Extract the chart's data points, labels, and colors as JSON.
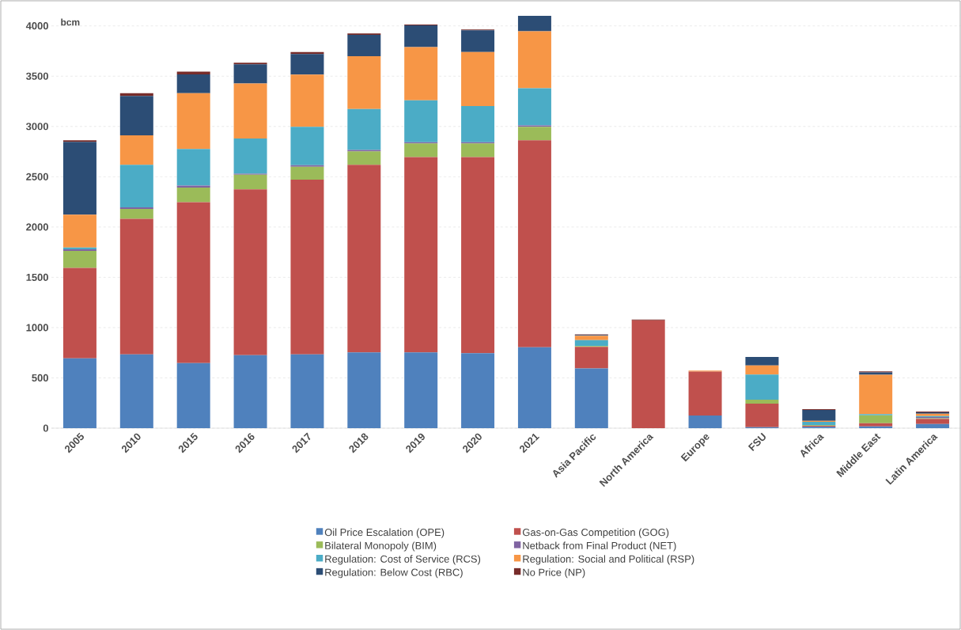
{
  "chart_data": {
    "type": "bar",
    "stacked": true,
    "ylabel": "bcm",
    "categories": [
      "2005",
      "2010",
      "2015",
      "2016",
      "2017",
      "2018",
      "2019",
      "2020",
      "2021",
      "Asia Pacific",
      "North America",
      "Europe",
      "FSU",
      "Africa",
      "Middle East",
      "Latin America"
    ],
    "series": [
      {
        "name": "Oil Price Escalation (OPE)",
        "color": "#4f81bd",
        "values": [
          694,
          734,
          648,
          726,
          734,
          753,
          753,
          745,
          805,
          594,
          0,
          126,
          10,
          13,
          18,
          42
        ]
      },
      {
        "name": "Gas-on-Gas Competition (GOG)",
        "color": "#c0504d",
        "values": [
          899,
          1347,
          1599,
          1648,
          1738,
          1865,
          1943,
          1951,
          2057,
          215,
          1073,
          437,
          233,
          11,
          32,
          50
        ]
      },
      {
        "name": "Bilateral Monopoly (BIM)",
        "color": "#9bbb59",
        "values": [
          169,
          98,
          146,
          146,
          127,
          135,
          136,
          136,
          135,
          8,
          0,
          0,
          40,
          5,
          78,
          7
        ]
      },
      {
        "name": "Netback from Final Product (NET)",
        "color": "#8064a2",
        "values": [
          16,
          16,
          19,
          11,
          16,
          14,
          11,
          11,
          14,
          null,
          0,
          0,
          0,
          0,
          0,
          11
        ]
      },
      {
        "name": "Regulation: Cost of Service (RCS)",
        "color": "#4bacc6",
        "values": [
          19,
          423,
          363,
          350,
          382,
          406,
          417,
          360,
          368,
          58,
          0,
          0,
          251,
          34,
          11,
          10
        ]
      },
      {
        "name": "Regulation: Social and Political (RSP)",
        "color": "#f79646",
        "values": [
          325,
          293,
          556,
          547,
          518,
          526,
          529,
          537,
          567,
          44,
          0,
          10,
          89,
          10,
          392,
          24
        ]
      },
      {
        "name": "Regulation: Below Cost (RBC)",
        "color": "#2c4d75",
        "values": [
          724,
          393,
          187,
          190,
          206,
          212,
          216,
          217,
          154,
          8,
          0,
          0,
          86,
          108,
          24,
          13
        ]
      },
      {
        "name": "No Price (NP)",
        "color": "#772c2a",
        "values": [
          16,
          27,
          27,
          16,
          19,
          13,
          9,
          8,
          0,
          6,
          8,
          0,
          0,
          7,
          10,
          8
        ]
      }
    ],
    "ylim": [
      0,
      4100
    ],
    "yticks": [
      0,
      500,
      1000,
      1500,
      2000,
      2500,
      3000,
      3500,
      4000
    ],
    "grid": "y",
    "legend": "bottom"
  }
}
